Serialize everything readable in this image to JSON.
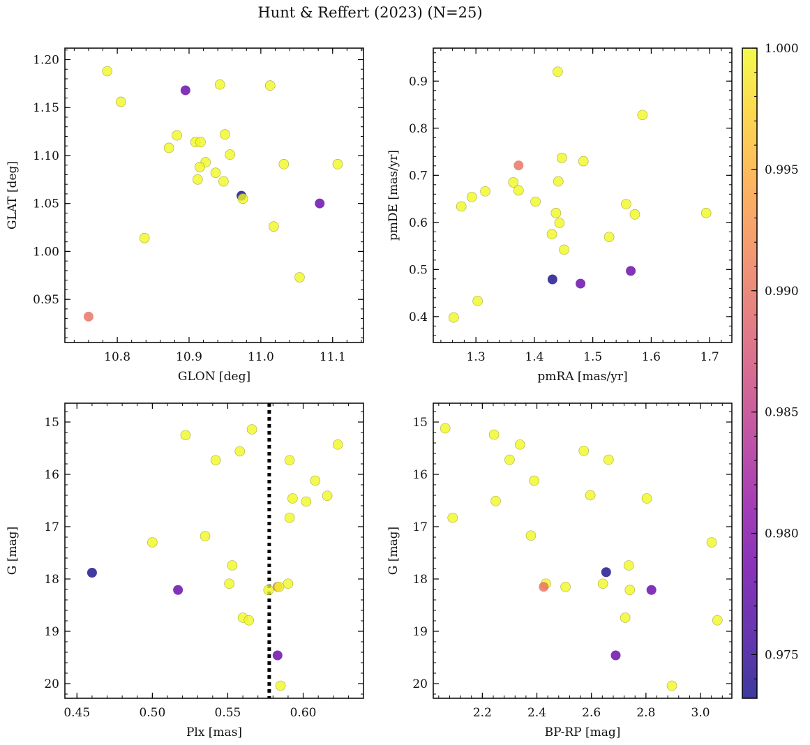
{
  "figure": {
    "title": "Hunt & Reffert (2023) (N=25)"
  },
  "colorbar": {
    "colormap": "plasma",
    "vmin": 0.9732,
    "vmax": 1.0,
    "ticks": [
      0.975,
      0.98,
      0.985,
      0.99,
      0.995,
      1.0
    ],
    "tick_labels": [
      "0.975",
      "0.980",
      "0.985",
      "0.990",
      "0.995",
      "1.000"
    ]
  },
  "chart_data": [
    {
      "type": "scatter",
      "id": "glon-glat",
      "xlabel": "GLON [deg]",
      "ylabel": "GLAT [deg]",
      "xlim": [
        10.727,
        11.143
      ],
      "ylim": [
        0.905,
        1.212
      ],
      "y_inverted": false,
      "xticks": [
        10.8,
        10.9,
        11.0,
        11.1
      ],
      "xtick_labels": [
        "10.8",
        "10.9",
        "11.0",
        "11.1"
      ],
      "yticks": [
        0.95,
        1.0,
        1.05,
        1.1,
        1.15,
        1.2
      ],
      "ytick_labels": [
        "0.95",
        "1.00",
        "1.05",
        "1.10",
        "1.15",
        "1.20"
      ],
      "points": [
        {
          "x": 10.786,
          "y": 1.188,
          "c": 1.0
        },
        {
          "x": 10.805,
          "y": 1.156,
          "c": 1.0
        },
        {
          "x": 10.895,
          "y": 1.168,
          "c": 0.978
        },
        {
          "x": 10.943,
          "y": 1.174,
          "c": 1.0
        },
        {
          "x": 11.013,
          "y": 1.173,
          "c": 1.0
        },
        {
          "x": 10.883,
          "y": 1.121,
          "c": 1.0
        },
        {
          "x": 10.95,
          "y": 1.122,
          "c": 1.0
        },
        {
          "x": 10.872,
          "y": 1.108,
          "c": 1.0
        },
        {
          "x": 10.909,
          "y": 1.114,
          "c": 1.0
        },
        {
          "x": 10.916,
          "y": 1.114,
          "c": 1.0
        },
        {
          "x": 10.957,
          "y": 1.101,
          "c": 1.0
        },
        {
          "x": 10.923,
          "y": 1.093,
          "c": 1.0
        },
        {
          "x": 10.915,
          "y": 1.088,
          "c": 1.0
        },
        {
          "x": 10.937,
          "y": 1.082,
          "c": 1.0
        },
        {
          "x": 11.032,
          "y": 1.091,
          "c": 1.0
        },
        {
          "x": 11.107,
          "y": 1.091,
          "c": 1.0
        },
        {
          "x": 10.912,
          "y": 1.075,
          "c": 1.0
        },
        {
          "x": 10.948,
          "y": 1.073,
          "c": 1.0
        },
        {
          "x": 10.973,
          "y": 1.058,
          "c": 0.9735
        },
        {
          "x": 10.975,
          "y": 1.055,
          "c": 1.0
        },
        {
          "x": 11.082,
          "y": 1.05,
          "c": 0.978
        },
        {
          "x": 11.018,
          "y": 1.026,
          "c": 1.0
        },
        {
          "x": 10.838,
          "y": 1.014,
          "c": 1.0
        },
        {
          "x": 11.054,
          "y": 0.973,
          "c": 1.0
        },
        {
          "x": 10.76,
          "y": 0.932,
          "c": 0.99
        }
      ]
    },
    {
      "type": "scatter",
      "id": "pmra-pmde",
      "xlabel": "pmRA [mas/yr]",
      "ylabel": "pmDE [mas/yr]",
      "xlim": [
        1.227,
        1.738
      ],
      "ylim": [
        0.345,
        0.97
      ],
      "y_inverted": false,
      "xticks": [
        1.3,
        1.4,
        1.5,
        1.6,
        1.7
      ],
      "xtick_labels": [
        "1.3",
        "1.4",
        "1.5",
        "1.6",
        "1.7"
      ],
      "yticks": [
        0.4,
        0.5,
        0.6,
        0.7,
        0.8,
        0.9
      ],
      "ytick_labels": [
        "0.4",
        "0.5",
        "0.6",
        "0.7",
        "0.8",
        "0.9"
      ],
      "points": [
        {
          "x": 1.44,
          "y": 0.92,
          "c": 1.0
        },
        {
          "x": 1.585,
          "y": 0.828,
          "c": 1.0
        },
        {
          "x": 1.447,
          "y": 0.737,
          "c": 1.0
        },
        {
          "x": 1.484,
          "y": 0.73,
          "c": 1.0
        },
        {
          "x": 1.373,
          "y": 0.721,
          "c": 0.99
        },
        {
          "x": 1.364,
          "y": 0.685,
          "c": 1.0
        },
        {
          "x": 1.441,
          "y": 0.687,
          "c": 1.0
        },
        {
          "x": 1.316,
          "y": 0.666,
          "c": 1.0
        },
        {
          "x": 1.373,
          "y": 0.668,
          "c": 1.0
        },
        {
          "x": 1.293,
          "y": 0.654,
          "c": 1.0
        },
        {
          "x": 1.402,
          "y": 0.644,
          "c": 1.0
        },
        {
          "x": 1.275,
          "y": 0.634,
          "c": 1.0
        },
        {
          "x": 1.557,
          "y": 0.639,
          "c": 1.0
        },
        {
          "x": 1.437,
          "y": 0.62,
          "c": 1.0
        },
        {
          "x": 1.572,
          "y": 0.617,
          "c": 1.0
        },
        {
          "x": 1.694,
          "y": 0.62,
          "c": 1.0
        },
        {
          "x": 1.443,
          "y": 0.599,
          "c": 1.0
        },
        {
          "x": 1.43,
          "y": 0.575,
          "c": 1.0
        },
        {
          "x": 1.528,
          "y": 0.569,
          "c": 1.0
        },
        {
          "x": 1.451,
          "y": 0.542,
          "c": 1.0
        },
        {
          "x": 1.565,
          "y": 0.497,
          "c": 0.978
        },
        {
          "x": 1.431,
          "y": 0.479,
          "c": 0.9735
        },
        {
          "x": 1.479,
          "y": 0.47,
          "c": 0.978
        },
        {
          "x": 1.303,
          "y": 0.433,
          "c": 1.0
        },
        {
          "x": 1.262,
          "y": 0.398,
          "c": 1.0
        }
      ]
    },
    {
      "type": "scatter",
      "id": "plx-g",
      "xlabel": "Plx [mas]",
      "ylabel": "G [mag]",
      "xlim": [
        0.442,
        0.64
      ],
      "ylim": [
        20.28,
        14.64
      ],
      "y_inverted": true,
      "vline": {
        "x": 0.5775,
        "style": "dotted"
      },
      "xticks": [
        0.45,
        0.5,
        0.55,
        0.6
      ],
      "xtick_labels": [
        "0.45",
        "0.50",
        "0.55",
        "0.60"
      ],
      "yticks": [
        15,
        16,
        17,
        18,
        19,
        20
      ],
      "ytick_labels": [
        "15",
        "16",
        "17",
        "18",
        "19",
        "20"
      ],
      "points": [
        {
          "x": 0.566,
          "y": 15.14,
          "c": 1.0
        },
        {
          "x": 0.522,
          "y": 15.25,
          "c": 1.0
        },
        {
          "x": 0.623,
          "y": 15.43,
          "c": 1.0
        },
        {
          "x": 0.558,
          "y": 15.56,
          "c": 1.0
        },
        {
          "x": 0.542,
          "y": 15.73,
          "c": 1.0
        },
        {
          "x": 0.591,
          "y": 15.73,
          "c": 1.0
        },
        {
          "x": 0.608,
          "y": 16.12,
          "c": 1.0
        },
        {
          "x": 0.616,
          "y": 16.41,
          "c": 1.0
        },
        {
          "x": 0.593,
          "y": 16.46,
          "c": 1.0
        },
        {
          "x": 0.602,
          "y": 16.52,
          "c": 1.0
        },
        {
          "x": 0.591,
          "y": 16.83,
          "c": 1.0
        },
        {
          "x": 0.535,
          "y": 17.18,
          "c": 1.0
        },
        {
          "x": 0.5,
          "y": 17.3,
          "c": 1.0
        },
        {
          "x": 0.553,
          "y": 17.74,
          "c": 1.0
        },
        {
          "x": 0.46,
          "y": 17.88,
          "c": 0.9735
        },
        {
          "x": 0.551,
          "y": 18.09,
          "c": 1.0
        },
        {
          "x": 0.59,
          "y": 18.09,
          "c": 1.0
        },
        {
          "x": 0.583,
          "y": 18.15,
          "c": 0.99
        },
        {
          "x": 0.584,
          "y": 18.15,
          "c": 1.0
        },
        {
          "x": 0.517,
          "y": 18.21,
          "c": 0.978
        },
        {
          "x": 0.577,
          "y": 18.21,
          "c": 1.0
        },
        {
          "x": 0.56,
          "y": 18.74,
          "c": 1.0
        },
        {
          "x": 0.564,
          "y": 18.79,
          "c": 1.0
        },
        {
          "x": 0.583,
          "y": 19.46,
          "c": 0.978
        },
        {
          "x": 0.585,
          "y": 20.04,
          "c": 1.0
        }
      ]
    },
    {
      "type": "scatter",
      "id": "bprp-g",
      "xlabel": "BP-RP [mag]",
      "ylabel": "G [mag]",
      "xlim": [
        2.02,
        3.115
      ],
      "ylim": [
        20.28,
        14.64
      ],
      "y_inverted": true,
      "xticks": [
        2.2,
        2.4,
        2.6,
        2.8,
        3.0
      ],
      "xtick_labels": [
        "2.2",
        "2.4",
        "2.6",
        "2.8",
        "3.0"
      ],
      "yticks": [
        15,
        16,
        17,
        18,
        19,
        20
      ],
      "ytick_labels": [
        "15",
        "16",
        "17",
        "18",
        "19",
        "20"
      ],
      "points": [
        {
          "x": 2.064,
          "y": 15.12,
          "c": 1.0
        },
        {
          "x": 2.243,
          "y": 15.24,
          "c": 1.0
        },
        {
          "x": 2.338,
          "y": 15.43,
          "c": 1.0
        },
        {
          "x": 2.572,
          "y": 15.55,
          "c": 1.0
        },
        {
          "x": 2.3,
          "y": 15.72,
          "c": 1.0
        },
        {
          "x": 2.663,
          "y": 15.72,
          "c": 1.0
        },
        {
          "x": 2.39,
          "y": 16.12,
          "c": 1.0
        },
        {
          "x": 2.596,
          "y": 16.4,
          "c": 1.0
        },
        {
          "x": 2.803,
          "y": 16.46,
          "c": 1.0
        },
        {
          "x": 2.249,
          "y": 16.51,
          "c": 1.0
        },
        {
          "x": 2.091,
          "y": 16.83,
          "c": 1.0
        },
        {
          "x": 2.378,
          "y": 17.17,
          "c": 1.0
        },
        {
          "x": 3.041,
          "y": 17.3,
          "c": 1.0
        },
        {
          "x": 2.737,
          "y": 17.74,
          "c": 1.0
        },
        {
          "x": 2.654,
          "y": 17.87,
          "c": 0.9735
        },
        {
          "x": 2.433,
          "y": 18.09,
          "c": 1.0
        },
        {
          "x": 2.642,
          "y": 18.09,
          "c": 1.0
        },
        {
          "x": 2.425,
          "y": 18.15,
          "c": 0.99
        },
        {
          "x": 2.505,
          "y": 18.15,
          "c": 1.0
        },
        {
          "x": 2.741,
          "y": 18.21,
          "c": 1.0
        },
        {
          "x": 2.82,
          "y": 18.21,
          "c": 0.978
        },
        {
          "x": 2.724,
          "y": 18.74,
          "c": 1.0
        },
        {
          "x": 3.062,
          "y": 18.79,
          "c": 1.0
        },
        {
          "x": 2.689,
          "y": 19.46,
          "c": 0.978
        },
        {
          "x": 2.895,
          "y": 20.04,
          "c": 1.0
        }
      ]
    }
  ]
}
